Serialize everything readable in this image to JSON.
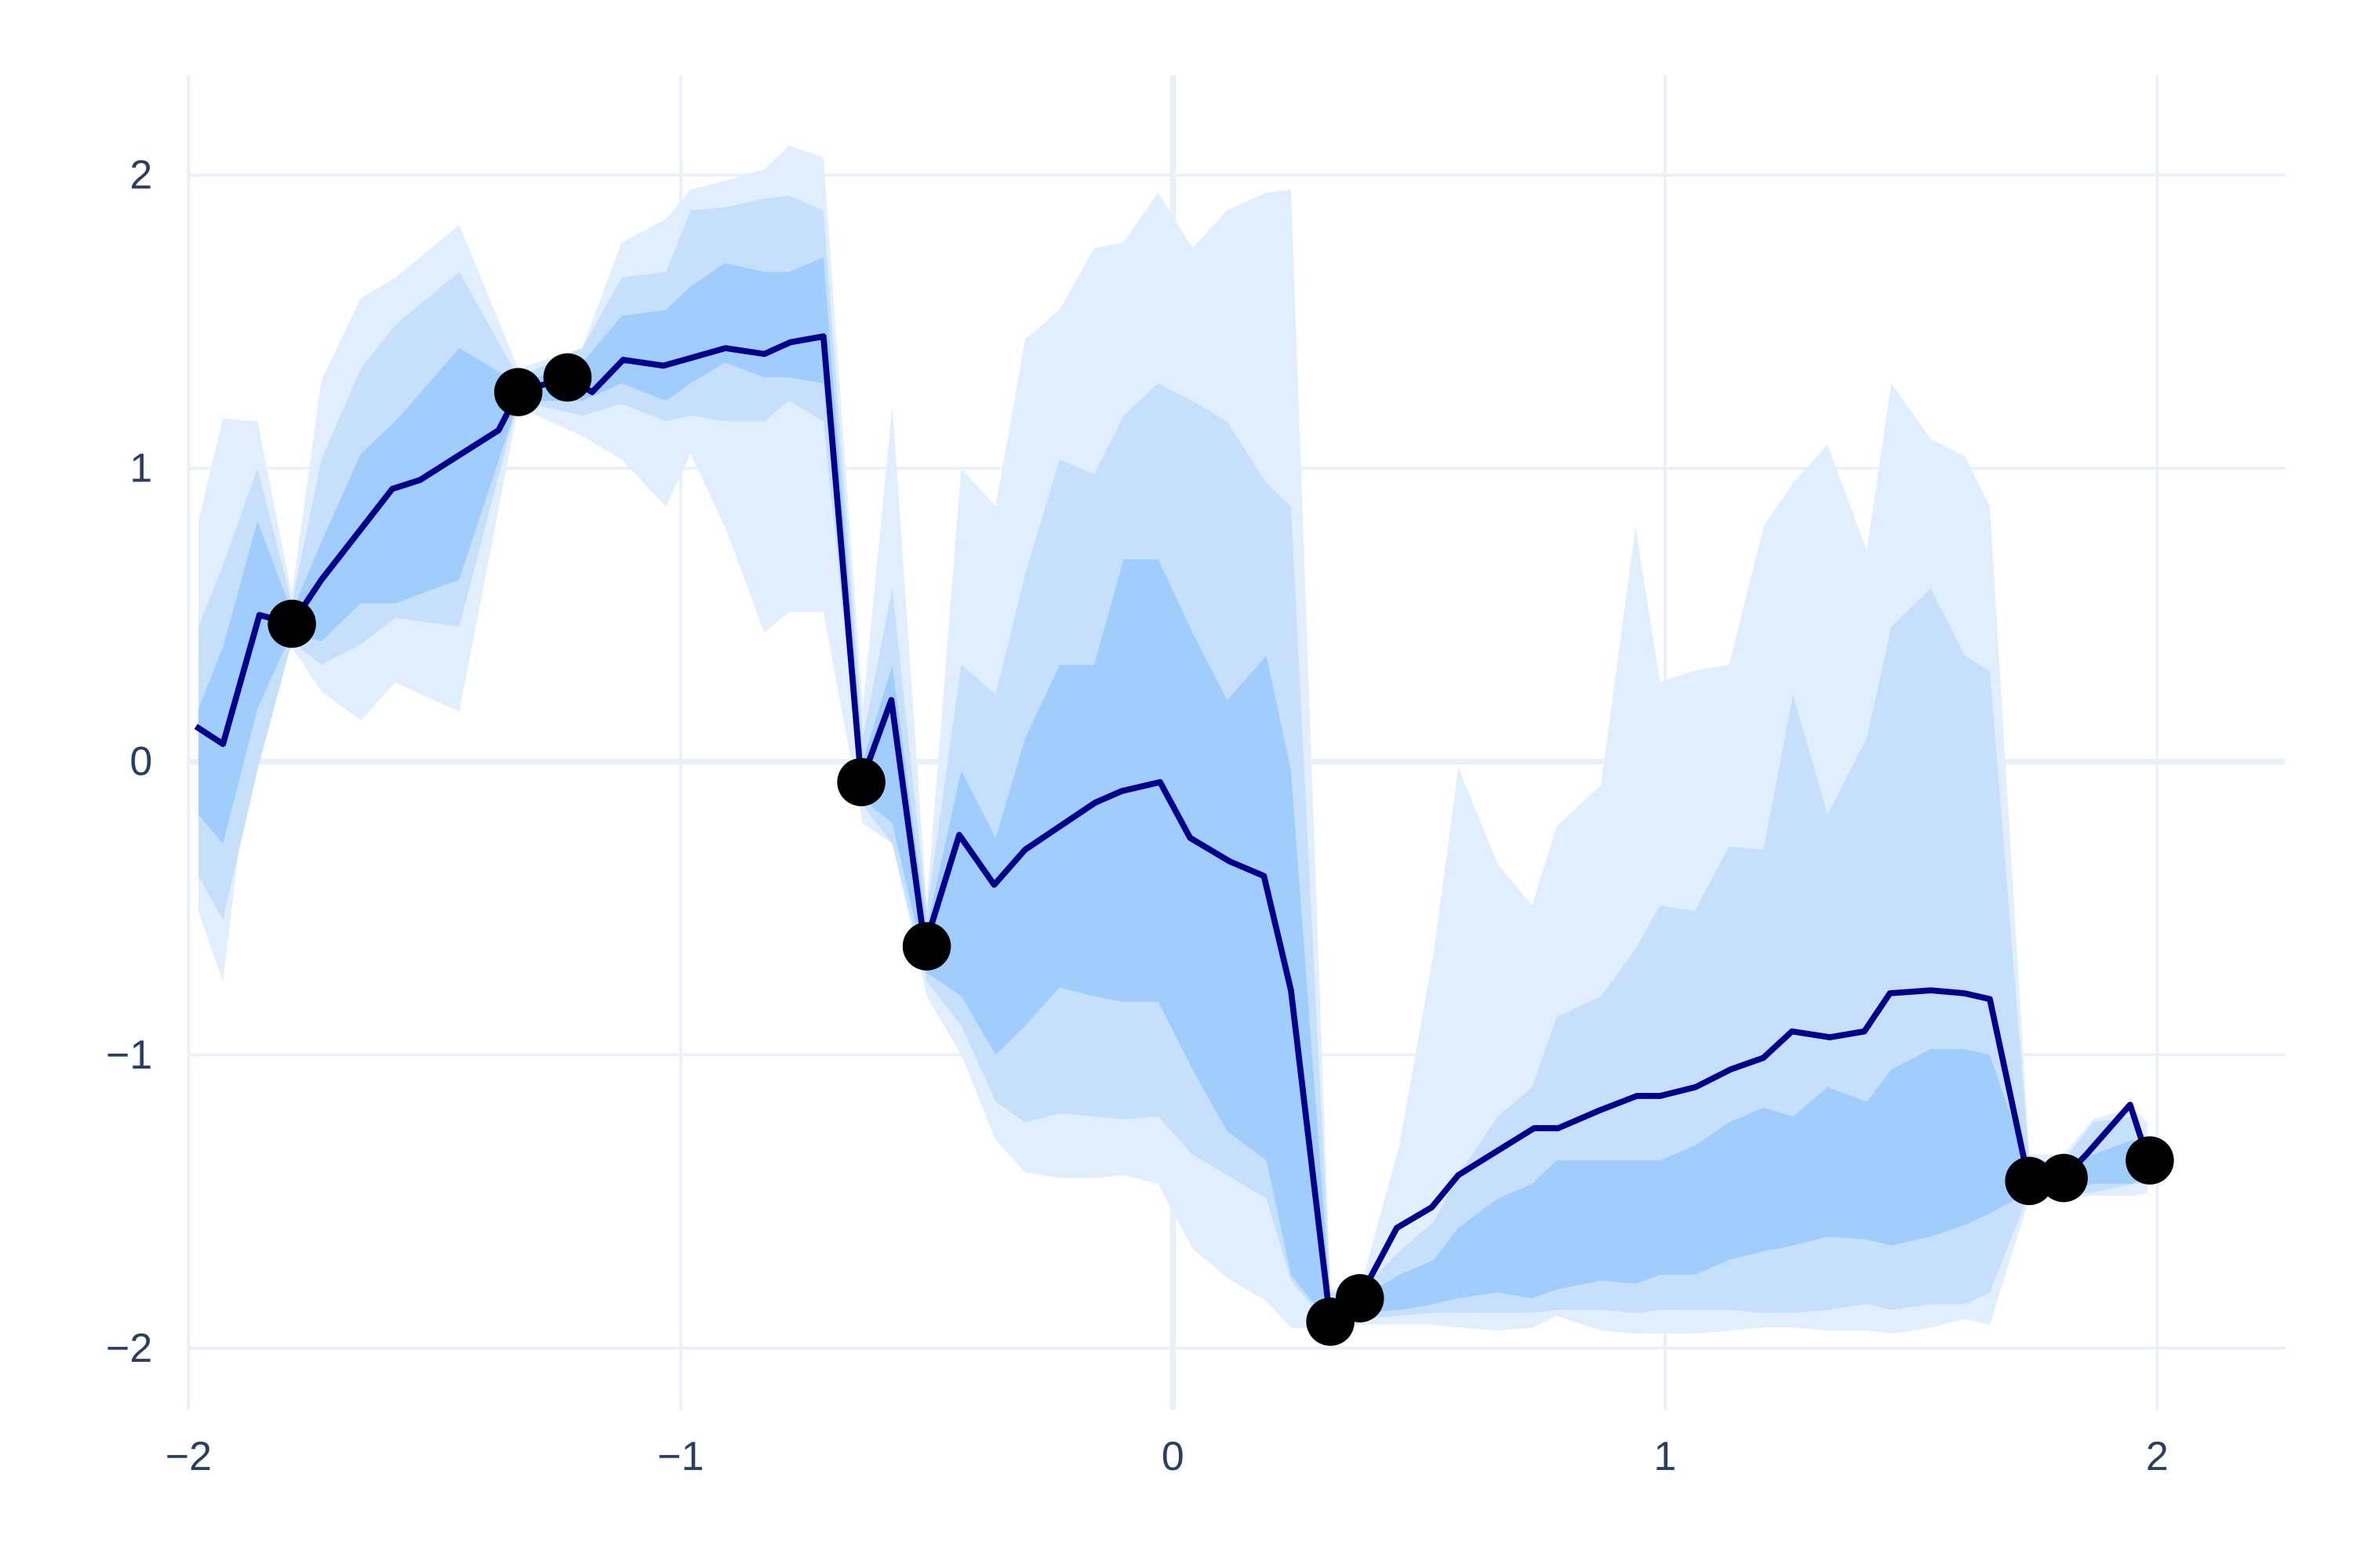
{
  "chart_data": {
    "type": "line",
    "xlim": [
      -2,
      2.26
    ],
    "ylim": [
      -2.21,
      2.34
    ],
    "xticks": [
      {
        "value": -2,
        "label": "−2"
      },
      {
        "value": -1,
        "label": "−1"
      },
      0,
      1,
      2
    ],
    "yticks": [
      {
        "value": -2,
        "label": "−2"
      },
      {
        "value": -1,
        "label": "−1"
      },
      0,
      1,
      2
    ],
    "grid": true,
    "grid_color": "#ebf0f8",
    "x": [
      -1.985,
      -1.93,
      -1.856,
      -1.79,
      -1.73,
      -1.586,
      -1.53,
      -1.37,
      -1.33,
      -1.23,
      -1.18,
      -1.117,
      -1.035,
      -0.909,
      -0.83,
      -0.777,
      -0.71,
      -0.633,
      -0.572,
      -0.504,
      -0.434,
      -0.363,
      -0.3,
      -0.158,
      -0.103,
      -0.026,
      0.035,
      0.115,
      0.185,
      0.24,
      0.32,
      0.379,
      0.455,
      0.526,
      0.58,
      0.657,
      0.734,
      0.783,
      0.866,
      0.943,
      0.99,
      1.062,
      1.133,
      1.2,
      1.258,
      1.335,
      1.405,
      1.457,
      1.54,
      1.608,
      1.66,
      1.739,
      1.81,
      1.856,
      1.945,
      1.98
    ],
    "series": [
      {
        "color": "#00008b",
        "values": [
          0.12,
          0.06,
          0.5,
          0.47,
          0.62,
          0.93,
          0.96,
          1.13,
          1.26,
          1.31,
          1.26,
          1.37,
          1.35,
          1.41,
          1.39,
          1.43,
          1.45,
          -0.07,
          0.21,
          -0.63,
          -0.25,
          -0.42,
          -0.3,
          -0.14,
          -0.1,
          -0.07,
          -0.26,
          -0.34,
          -0.39,
          -0.78,
          -1.91,
          -1.83,
          -1.59,
          -1.52,
          -1.41,
          -1.33,
          -1.25,
          -1.25,
          -1.19,
          -1.14,
          -1.14,
          -1.11,
          -1.05,
          -1.01,
          -0.92,
          -0.94,
          -0.92,
          -0.79,
          -0.78,
          -0.79,
          -0.81,
          -1.43,
          -1.42,
          -1.34,
          -1.17,
          -1.35
        ]
      }
    ],
    "bands": {
      "x": [
        -1.98,
        -1.93,
        -1.86,
        -1.79,
        -1.73,
        -1.65,
        -1.58,
        -1.45,
        -1.33,
        -1.2,
        -1.12,
        -1.03,
        -0.98,
        -0.91,
        -0.83,
        -0.78,
        -0.71,
        -0.63,
        -0.57,
        -0.5,
        -0.43,
        -0.36,
        -0.3,
        -0.23,
        -0.16,
        -0.1,
        -0.03,
        0.04,
        0.11,
        0.19,
        0.24,
        0.32,
        0.38,
        0.46,
        0.53,
        0.58,
        0.66,
        0.73,
        0.78,
        0.87,
        0.94,
        0.99,
        1.06,
        1.13,
        1.2,
        1.26,
        1.33,
        1.41,
        1.46,
        1.54,
        1.61,
        1.66,
        1.74,
        1.81,
        1.87,
        1.95,
        1.98
      ],
      "levels": [
        {
          "color": "#e0eefd",
          "upper": [
            0.82,
            1.17,
            1.16,
            0.57,
            1.3,
            1.58,
            1.65,
            1.83,
            1.34,
            1.41,
            1.77,
            1.85,
            1.95,
            1.98,
            2.02,
            2.1,
            2.06,
            0.18,
            1.21,
            -0.49,
            1.0,
            0.87,
            1.44,
            1.54,
            1.75,
            1.77,
            1.94,
            1.75,
            1.88,
            1.94,
            1.95,
            -1.8,
            -1.8,
            -1.31,
            -0.65,
            -0.02,
            -0.35,
            -0.49,
            -0.22,
            -0.08,
            0.8,
            0.27,
            0.31,
            0.33,
            0.8,
            0.95,
            1.08,
            0.72,
            1.29,
            1.1,
            1.04,
            0.87,
            -1.34,
            -1.34,
            -1.22,
            -1.18,
            -1.23
          ],
          "lower": [
            -0.51,
            -0.75,
            0.23,
            0.39,
            0.24,
            0.14,
            0.27,
            0.17,
            1.21,
            1.11,
            1.03,
            0.87,
            1.05,
            0.8,
            0.44,
            0.51,
            0.51,
            -0.21,
            -0.28,
            -0.8,
            -1.0,
            -1.29,
            -1.4,
            -1.42,
            -1.42,
            -1.41,
            -1.44,
            -1.66,
            -1.76,
            -1.84,
            -1.93,
            -1.94,
            -1.92,
            -1.92,
            -1.92,
            -1.93,
            -1.94,
            -1.93,
            -1.89,
            -1.94,
            -1.95,
            -1.95,
            -1.95,
            -1.94,
            -1.93,
            -1.93,
            -1.94,
            -1.94,
            -1.95,
            -1.93,
            -1.9,
            -1.92,
            -1.49,
            -1.49,
            -1.48,
            -1.48,
            -1.47
          ]
        },
        {
          "color": "#c6e0fc",
          "upper": [
            0.46,
            0.67,
            1.0,
            0.54,
            1.03,
            1.34,
            1.49,
            1.67,
            1.31,
            1.41,
            1.65,
            1.67,
            1.88,
            1.89,
            1.92,
            1.93,
            1.88,
            0.08,
            0.59,
            -0.51,
            0.33,
            0.23,
            0.64,
            1.03,
            0.98,
            1.18,
            1.29,
            1.23,
            1.16,
            0.95,
            0.87,
            -1.81,
            -1.81,
            -1.67,
            -1.57,
            -1.41,
            -1.21,
            -1.11,
            -0.87,
            -0.8,
            -0.64,
            -0.49,
            -0.51,
            -0.29,
            -0.3,
            0.23,
            -0.18,
            0.08,
            0.46,
            0.59,
            0.36,
            0.31,
            -1.36,
            -1.36,
            -1.23,
            -1.21,
            -1.29
          ],
          "lower": [
            -0.39,
            -0.54,
            -0.03,
            0.41,
            0.33,
            0.4,
            0.49,
            0.46,
            1.23,
            1.18,
            1.22,
            1.16,
            1.18,
            1.16,
            1.16,
            1.23,
            1.16,
            -0.15,
            -0.28,
            -0.75,
            -0.9,
            -1.16,
            -1.23,
            -1.2,
            -1.21,
            -1.22,
            -1.21,
            -1.34,
            -1.41,
            -1.49,
            -1.77,
            -1.93,
            -1.9,
            -1.89,
            -1.88,
            -1.88,
            -1.88,
            -1.88,
            -1.87,
            -1.87,
            -1.88,
            -1.87,
            -1.87,
            -1.87,
            -1.88,
            -1.88,
            -1.87,
            -1.85,
            -1.87,
            -1.85,
            -1.85,
            -1.81,
            -1.47,
            -1.47,
            -1.47,
            -1.44,
            -1.44
          ]
        },
        {
          "color": "#a0cdfc",
          "upper": [
            0.18,
            0.39,
            0.82,
            0.51,
            0.75,
            1.05,
            1.16,
            1.41,
            1.29,
            1.36,
            1.52,
            1.54,
            1.62,
            1.7,
            1.67,
            1.67,
            1.72,
            0.0,
            0.33,
            -0.57,
            -0.03,
            -0.26,
            0.08,
            0.33,
            0.33,
            0.69,
            0.69,
            0.44,
            0.21,
            0.36,
            -0.03,
            -1.84,
            -1.83,
            -1.75,
            -1.7,
            -1.59,
            -1.49,
            -1.44,
            -1.36,
            -1.36,
            -1.36,
            -1.36,
            -1.31,
            -1.23,
            -1.18,
            -1.21,
            -1.11,
            -1.16,
            -1.05,
            -0.98,
            -0.98,
            -1.0,
            -1.39,
            -1.39,
            -1.34,
            -1.29,
            -1.32
          ],
          "lower": [
            -0.18,
            -0.28,
            0.18,
            0.44,
            0.41,
            0.54,
            0.54,
            0.62,
            1.23,
            1.23,
            1.29,
            1.23,
            1.29,
            1.36,
            1.31,
            1.31,
            1.29,
            -0.13,
            -0.21,
            -0.72,
            -0.8,
            -1.0,
            -0.9,
            -0.77,
            -0.8,
            -0.82,
            -0.82,
            -1.05,
            -1.26,
            -1.36,
            -1.75,
            -1.92,
            -1.88,
            -1.87,
            -1.85,
            -1.83,
            -1.81,
            -1.83,
            -1.8,
            -1.77,
            -1.78,
            -1.75,
            -1.75,
            -1.7,
            -1.67,
            -1.65,
            -1.62,
            -1.63,
            -1.65,
            -1.62,
            -1.58,
            -1.54,
            -1.47,
            -1.47,
            -1.44,
            -1.44,
            -1.41
          ]
        }
      ]
    },
    "points": {
      "color": "#000000",
      "x": [
        -1.79,
        -1.33,
        -1.23,
        -0.633,
        -0.5,
        0.32,
        0.38,
        1.74,
        1.81,
        1.985
      ],
      "y": [
        0.47,
        1.26,
        1.31,
        -0.07,
        -0.63,
        -1.91,
        -1.83,
        -1.43,
        -1.42,
        -1.36
      ]
    }
  }
}
